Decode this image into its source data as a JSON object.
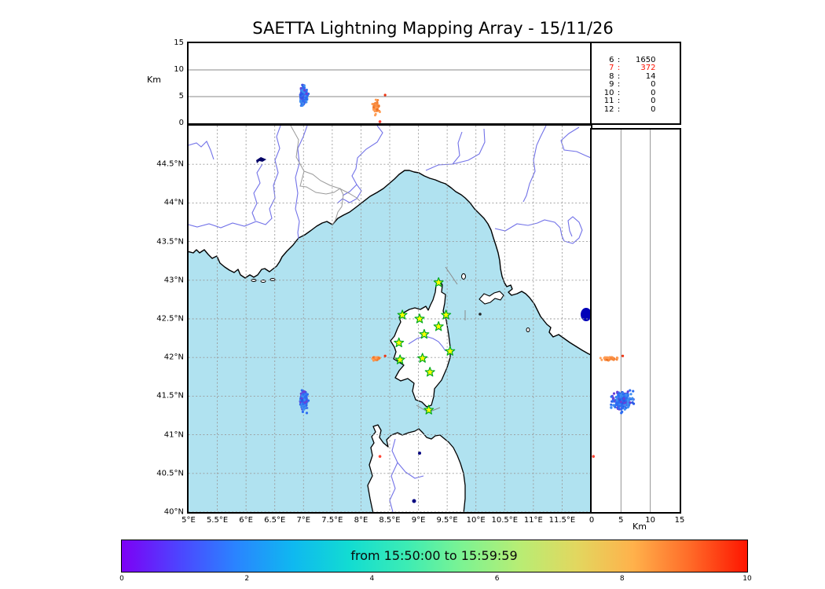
{
  "title": "SAETTA Lightning Mapping Array - 15/11/26",
  "axes": {
    "altitude_unit": "Km",
    "top_panel_ticks": [
      {
        "label": "15",
        "km": 15
      },
      {
        "label": "10",
        "km": 10
      },
      {
        "label": "5",
        "km": 5
      },
      {
        "label": "0",
        "km": 0
      }
    ],
    "right_panel_ticks": [
      {
        "label": "0",
        "km": 0
      },
      {
        "label": "5",
        "km": 5
      },
      {
        "label": "10",
        "km": 10
      },
      {
        "label": "15",
        "km": 15
      }
    ],
    "lat_ticks": [
      {
        "label": "44.5°N",
        "lat": 44.5
      },
      {
        "label": "44°N",
        "lat": 44.0
      },
      {
        "label": "43.5°N",
        "lat": 43.5
      },
      {
        "label": "43°N",
        "lat": 43.0
      },
      {
        "label": "42.5°N",
        "lat": 42.5
      },
      {
        "label": "42°N",
        "lat": 42.0
      },
      {
        "label": "41.5°N",
        "lat": 41.5
      },
      {
        "label": "41°N",
        "lat": 41.0
      },
      {
        "label": "40.5°N",
        "lat": 40.5
      },
      {
        "label": "40°N",
        "lat": 40.0
      }
    ],
    "lon_ticks": [
      {
        "label": "5°E",
        "lon": 5.0
      },
      {
        "label": "5.5°E",
        "lon": 5.5
      },
      {
        "label": "6°E",
        "lon": 6.0
      },
      {
        "label": "6.5°E",
        "lon": 6.5
      },
      {
        "label": "7°E",
        "lon": 7.0
      },
      {
        "label": "7.5°E",
        "lon": 7.5
      },
      {
        "label": "8°E",
        "lon": 8.0
      },
      {
        "label": "8.5°E",
        "lon": 8.5
      },
      {
        "label": "9°E",
        "lon": 9.0
      },
      {
        "label": "9.5°E",
        "lon": 9.5
      },
      {
        "label": "10°E",
        "lon": 10.0
      },
      {
        "label": "10.5°E",
        "lon": 10.5
      },
      {
        "label": "11°E",
        "lon": 11.0
      },
      {
        "label": "11.5°E",
        "lon": 11.5
      }
    ]
  },
  "chart_data": {
    "type": "scatter",
    "title": "SAETTA Lightning Mapping Array - 15/11/26",
    "time_window_label": "from 15:50:00 to 15:59:59",
    "map_extent": {
      "lon": [
        5.0,
        12.0
      ],
      "lat": [
        40.0,
        45.0
      ]
    },
    "altitude_range_km": [
      0,
      15
    ],
    "altitude_gridlines_km": [
      5,
      10
    ],
    "grid": "dashed 0.5 degree",
    "source_counts": [
      {
        "station": "6",
        "count": "1650",
        "color": "#000000"
      },
      {
        "station": "7",
        "count": "372",
        "color": "#ff1100"
      },
      {
        "station": "8",
        "count": "14",
        "color": "#000000"
      },
      {
        "station": "9",
        "count": "0",
        "color": "#000000"
      },
      {
        "station": "10",
        "count": "0",
        "color": "#000000"
      },
      {
        "station": "11",
        "count": "0",
        "color": "#000000"
      },
      {
        "station": "12",
        "count": "0",
        "color": "#000000"
      }
    ],
    "stations_lonlat": [
      [
        9.35,
        42.97
      ],
      [
        8.72,
        42.55
      ],
      [
        9.02,
        42.5
      ],
      [
        9.48,
        42.55
      ],
      [
        9.35,
        42.4
      ],
      [
        9.1,
        42.3
      ],
      [
        8.66,
        42.19
      ],
      [
        9.55,
        42.08
      ],
      [
        9.07,
        41.99
      ],
      [
        8.68,
        41.97
      ],
      [
        9.2,
        41.81
      ],
      [
        9.18,
        41.32
      ]
    ],
    "clusters": [
      {
        "name": "storm-cell-blue",
        "count": 260,
        "lon": {
          "mean": 7.0,
          "sd": 0.055
        },
        "lat": {
          "mean": 41.44,
          "sd": 0.11
        },
        "alt": {
          "mean": 5.2,
          "sd": 1.5,
          "min": 2.3,
          "max": 9.3
        },
        "dot": 1.6,
        "colors": [
          [
            "#2c6cf2",
            0.4
          ],
          [
            "#3f8df0",
            0.3
          ],
          [
            "#2a5ae8",
            0.15
          ],
          [
            "#6742d8",
            0.15
          ]
        ]
      },
      {
        "name": "storm-cell-orange",
        "count": 48,
        "lon": {
          "mean": 8.26,
          "sd": 0.06
        },
        "lat": {
          "mean": 41.985,
          "sd": 0.022
        },
        "alt": {
          "mean": 3.0,
          "sd": 1.6,
          "min": 0.5,
          "max": 5.8
        },
        "dot": 1.5,
        "colors": [
          [
            "#f6873b",
            0.5
          ],
          [
            "#ff9d55",
            0.3
          ],
          [
            "#ee6f1e",
            0.2
          ]
        ]
      },
      {
        "name": "single-red-point",
        "count": 1,
        "lon": {
          "mean": 8.42,
          "sd": 0
        },
        "lat": {
          "mean": 42.02,
          "sd": 0
        },
        "alt": {
          "mean": 5.3,
          "sd": 0,
          "min": 0,
          "max": 15
        },
        "dot": 1.6,
        "colors": [
          [
            "#ee3311",
            1
          ]
        ]
      },
      {
        "name": "spot-red-sardinia",
        "count": 1,
        "lon": {
          "mean": 8.33,
          "sd": 0
        },
        "lat": {
          "mean": 40.72,
          "sd": 0
        },
        "alt": {
          "mean": 0.3,
          "sd": 0,
          "min": 0,
          "max": 15
        },
        "dot": 1.8,
        "colors": [
          [
            "#ff4433",
            1
          ]
        ]
      }
    ],
    "colorbar": {
      "label": "from 15:50:00 to 15:59:59",
      "ticks": [
        "0",
        "2",
        "4",
        "6",
        "8",
        "10"
      ],
      "range": [
        0,
        10
      ],
      "gradient": [
        "#7d00f5",
        "#4d44ff",
        "#2a84ff",
        "#0fb8f0",
        "#12dcd2",
        "#3cecb4",
        "#7df392",
        "#b8ed74",
        "#e2d75f",
        "#ffb14b",
        "#ff6a28",
        "#fe1500"
      ]
    },
    "map_colors": {
      "sea": "#b0e2f0",
      "land": "#ffffff",
      "coast": "#000000",
      "river": "#7272e8",
      "border": "#9a9a9a",
      "grid": "#9a9a9a",
      "lake": "#0000b8",
      "lake_dark": "#000066",
      "star_fill": "#ffff00",
      "star_stroke": "#00aa22"
    }
  }
}
